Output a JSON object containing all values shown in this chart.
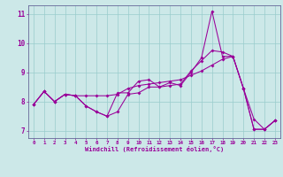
{
  "xlabel": "Windchill (Refroidissement éolien,°C)",
  "bg_color": "#cce8e8",
  "line_color": "#990099",
  "grid_color": "#99cccc",
  "axis_color": "#666699",
  "xlim": [
    -0.5,
    23.5
  ],
  "ylim": [
    6.75,
    11.3
  ],
  "xticks": [
    0,
    1,
    2,
    3,
    4,
    5,
    6,
    7,
    8,
    9,
    10,
    11,
    12,
    13,
    14,
    15,
    16,
    17,
    18,
    19,
    20,
    21,
    22,
    23
  ],
  "yticks": [
    7,
    8,
    9,
    10,
    11
  ],
  "line1_y": [
    7.9,
    8.35,
    8.0,
    8.25,
    8.2,
    7.85,
    7.65,
    7.5,
    7.65,
    8.25,
    8.3,
    8.5,
    8.5,
    8.65,
    8.55,
    9.0,
    9.5,
    11.1,
    9.55,
    9.55,
    8.45,
    7.05,
    7.05,
    7.35
  ],
  "line2_y": [
    7.9,
    8.35,
    8.0,
    8.25,
    8.2,
    8.2,
    8.2,
    8.2,
    8.25,
    8.45,
    8.55,
    8.6,
    8.65,
    8.7,
    8.75,
    8.9,
    9.05,
    9.25,
    9.45,
    9.55,
    8.45,
    7.4,
    7.05,
    7.35
  ],
  "line3_y": [
    7.9,
    8.35,
    8.0,
    8.25,
    8.2,
    7.85,
    7.65,
    7.5,
    8.3,
    8.3,
    8.7,
    8.75,
    8.5,
    8.55,
    8.6,
    9.05,
    9.4,
    9.75,
    9.7,
    9.55,
    8.45,
    7.05,
    7.05,
    7.35
  ]
}
